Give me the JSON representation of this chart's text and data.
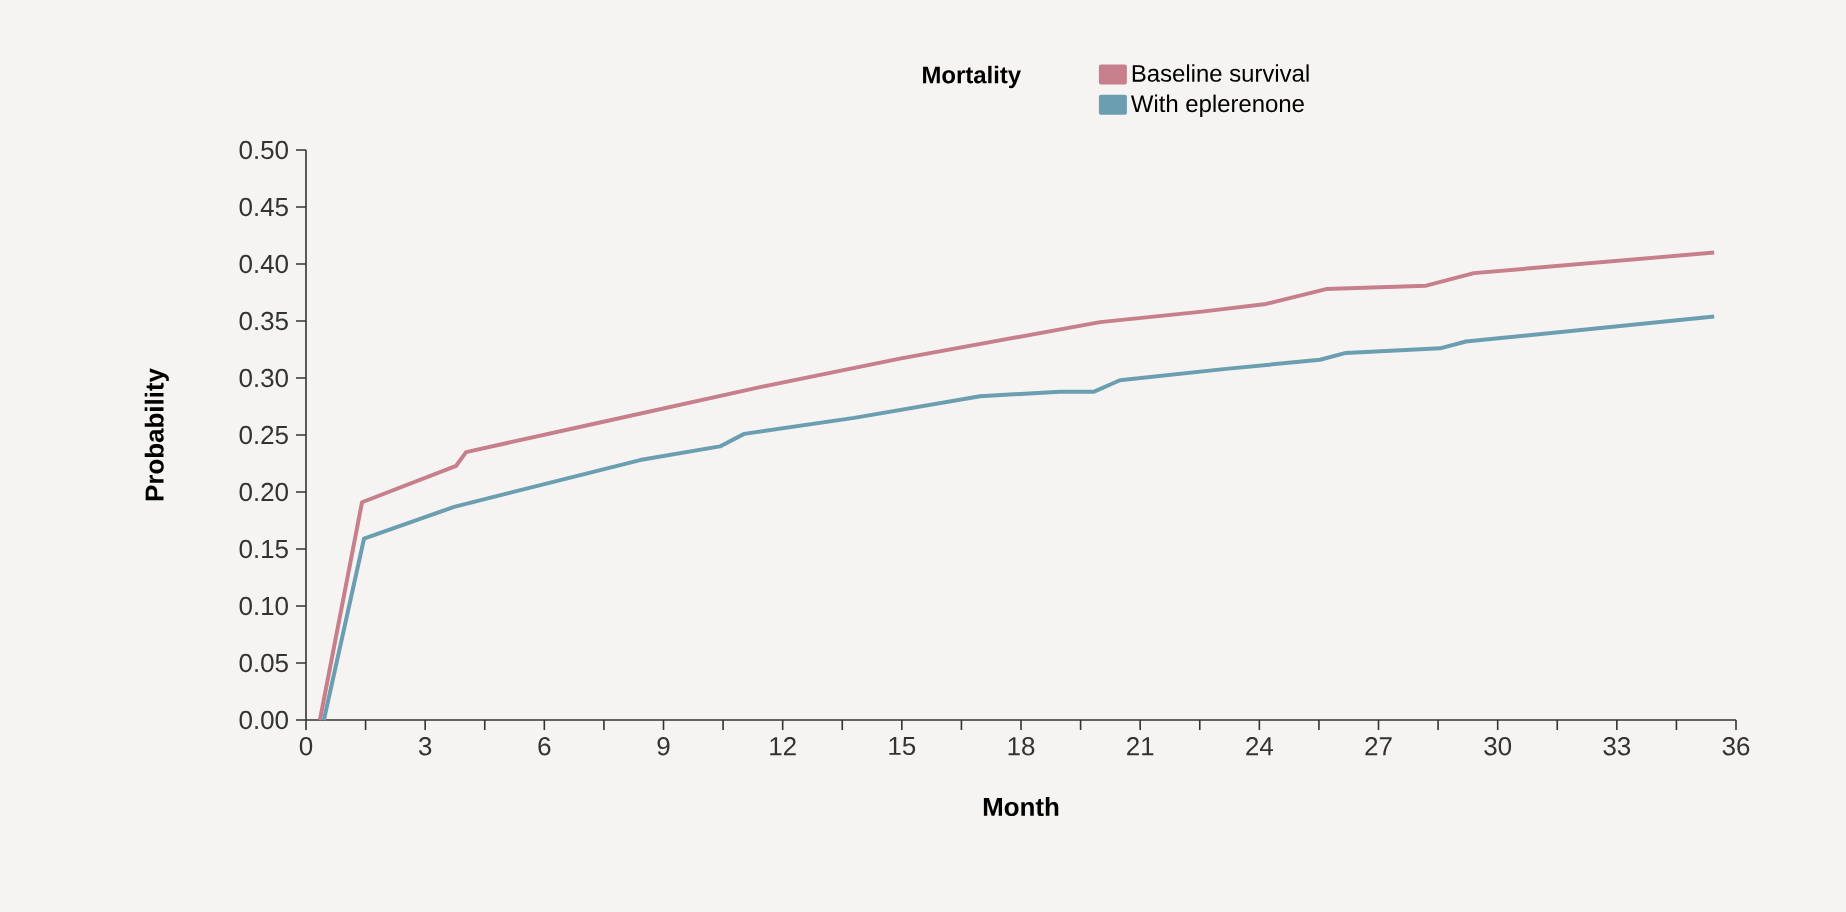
{
  "chart_data": {
    "type": "line",
    "xlabel": "Month",
    "ylabel": "Probability",
    "legend_title": "Mortality",
    "legend": "top",
    "grid": false,
    "marker": "none",
    "line_style": "solid",
    "xlim": [
      0,
      36
    ],
    "xticks": [
      0,
      3,
      6,
      9,
      12,
      15,
      18,
      21,
      24,
      27,
      30,
      33,
      36
    ],
    "ylim": [
      0,
      0.5
    ],
    "yticks": [
      {
        "value": 0,
        "label": "0.00"
      },
      {
        "value": 0.05,
        "label": "0.05"
      },
      {
        "value": 0.1,
        "label": "0.10"
      },
      {
        "value": 0.15,
        "label": "0.15"
      },
      {
        "value": 0.2,
        "label": "0.20"
      },
      {
        "value": 0.25,
        "label": "0.25"
      },
      {
        "value": 0.3,
        "label": "0.30"
      },
      {
        "value": 0.35,
        "label": "0.35"
      },
      {
        "value": 0.4,
        "label": "0.40"
      },
      {
        "value": 0.45,
        "label": "0.45"
      },
      {
        "value": 0.5,
        "label": "0.50"
      }
    ],
    "series": [
      {
        "name": "Baseline survival",
        "color": "#c87f8c",
        "x": [
          0.35,
          1.41,
          3.78,
          4.03,
          7.4,
          11.43,
          14.95,
          19.99,
          22.5,
          24.17,
          25.68,
          28.2,
          29.4,
          35.45
        ],
        "values": [
          0,
          0.191,
          0.223,
          0.235,
          0.261,
          0.292,
          0.317,
          0.349,
          0.358,
          0.365,
          0.378,
          0.381,
          0.392,
          0.41
        ]
      },
      {
        "name": "With eplerenone",
        "color": "#6a9eb0",
        "x": [
          0.45,
          1.46,
          3.73,
          8.41,
          10.42,
          11.03,
          13.8,
          16.97,
          18.98,
          19.84,
          20.49,
          23.16,
          25.53,
          26.18,
          28.55,
          29.2,
          35.45
        ],
        "values": [
          0,
          0.159,
          0.187,
          0.228,
          0.24,
          0.251,
          0.265,
          0.284,
          0.288,
          0.288,
          0.298,
          0.308,
          0.316,
          0.322,
          0.326,
          0.332,
          0.354
        ]
      }
    ]
  }
}
